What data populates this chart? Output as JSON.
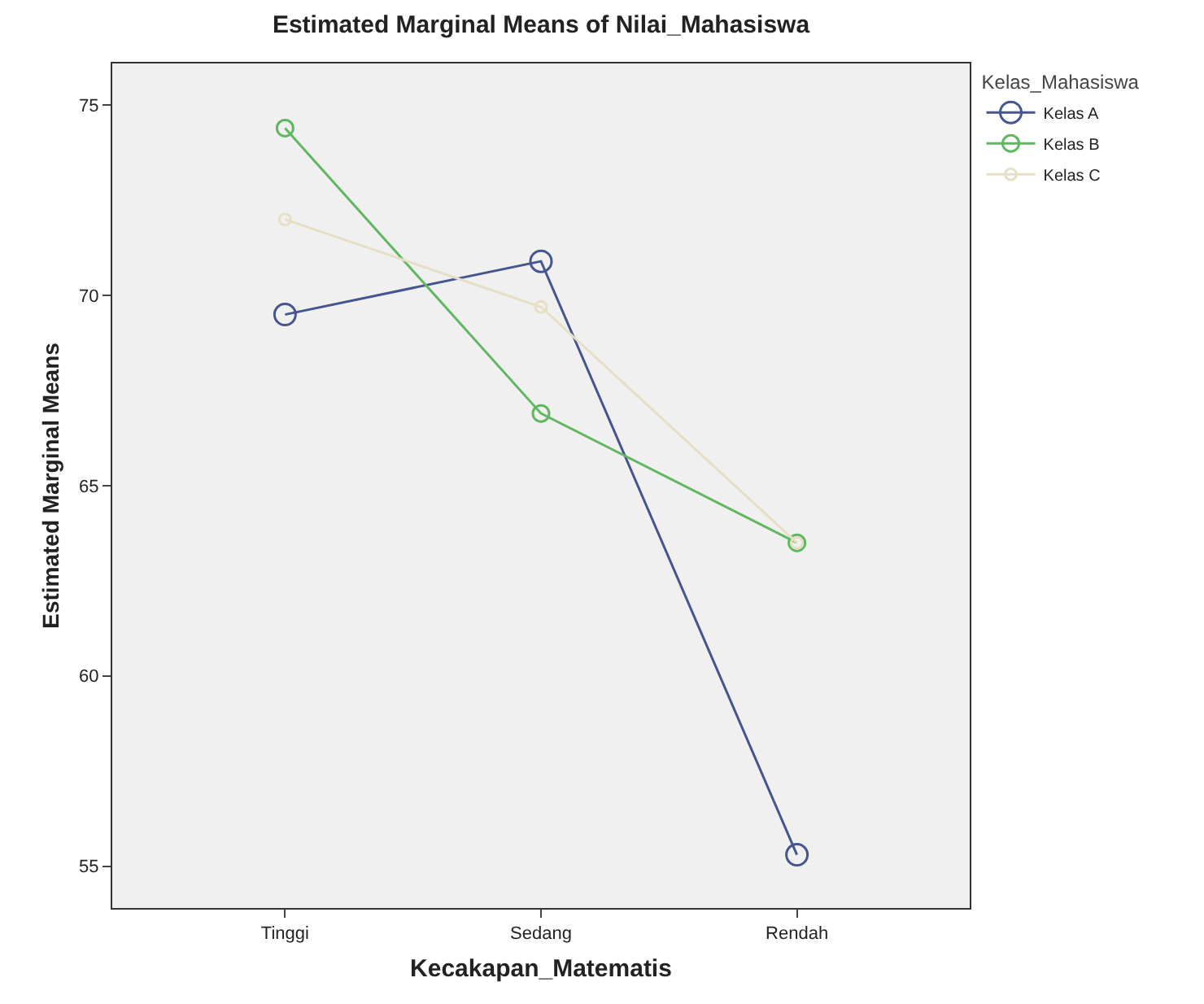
{
  "chart_data": {
    "type": "line",
    "title": "Estimated Marginal Means of Nilai_Mahasiswa",
    "xlabel": "Kecakapan_Matematis",
    "ylabel": "Estimated Marginal Means",
    "legend_title": "Kelas_Mahasiswa",
    "categories": [
      "Tinggi",
      "Sedang",
      "Rendah"
    ],
    "series": [
      {
        "name": "Kelas A",
        "color": "#44558f",
        "values": [
          69.5,
          70.9,
          55.3
        ]
      },
      {
        "name": "Kelas B",
        "color": "#5fb85f",
        "values": [
          74.4,
          66.9,
          63.5
        ]
      },
      {
        "name": "Kelas C",
        "color": "#e6dfc5",
        "values": [
          72.0,
          69.7,
          63.5
        ]
      }
    ],
    "ylim": [
      53.9,
      76.1
    ],
    "yticks": [
      55,
      60,
      65,
      70,
      75
    ],
    "grid": false,
    "legend": "top right",
    "marker": "circle",
    "line_style": "solid"
  }
}
